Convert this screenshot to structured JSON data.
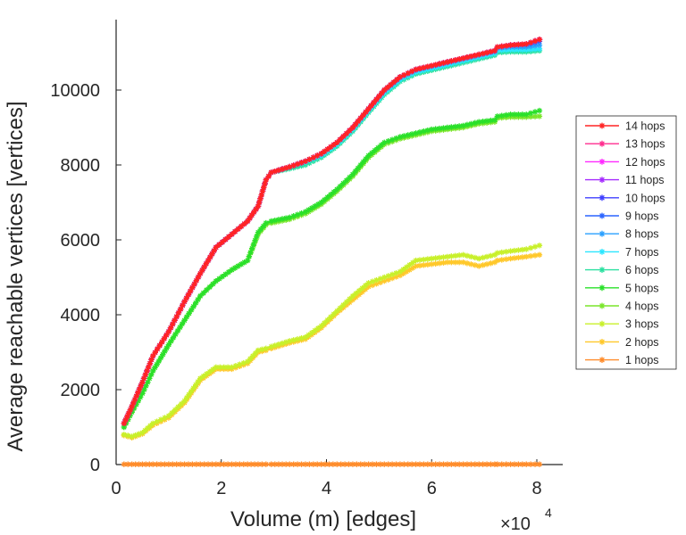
{
  "chart_data": {
    "type": "line",
    "title": "",
    "xlabel": "Volume (m) [edges]",
    "ylabel": "Average reachable vertices [vertices]",
    "xlim": [
      0,
      81000
    ],
    "ylim": [
      0,
      11800
    ],
    "x_ticks": [
      0,
      20000,
      40000,
      60000,
      80000
    ],
    "x_tick_labels": [
      "0",
      "2",
      "4",
      "6",
      "8"
    ],
    "x_exponent_base": "×10",
    "x_exponent_power": "4",
    "y_ticks": [
      0,
      2000,
      4000,
      6000,
      8000,
      10000
    ],
    "y_tick_labels": [
      "0",
      "2000",
      "4000",
      "6000",
      "8000",
      "10000"
    ],
    "grid": false,
    "legend_position": "right",
    "marker": "asterisk",
    "x": [
      1500,
      3000,
      5000,
      7000,
      10000,
      13000,
      16000,
      19000,
      22000,
      25000,
      27000,
      28500,
      29500,
      33000,
      36000,
      39000,
      42000,
      45000,
      48000,
      51000,
      54000,
      57000,
      60000,
      63000,
      66000,
      69000,
      72000,
      72500,
      75000,
      78000,
      80500
    ],
    "series": [
      {
        "name": "14 hops",
        "color": "#ff2424",
        "values": [
          1100,
          1550,
          2200,
          2900,
          3550,
          4350,
          5100,
          5800,
          6150,
          6500,
          6900,
          7600,
          7800,
          7950,
          8100,
          8300,
          8600,
          9000,
          9500,
          10000,
          10350,
          10550,
          10650,
          10750,
          10850,
          10950,
          11050,
          11150,
          11200,
          11230,
          11350
        ]
      },
      {
        "name": "13 hops",
        "color": "#ff2d8f",
        "values": [
          1100,
          1550,
          2200,
          2900,
          3550,
          4350,
          5100,
          5800,
          6150,
          6500,
          6900,
          7600,
          7800,
          7950,
          8100,
          8300,
          8600,
          9000,
          9500,
          10000,
          10350,
          10550,
          10650,
          10750,
          10850,
          10950,
          11050,
          11150,
          11200,
          11230,
          11350
        ]
      },
      {
        "name": "12 hops",
        "color": "#ff29ff",
        "values": [
          1100,
          1550,
          2200,
          2900,
          3550,
          4350,
          5100,
          5800,
          6150,
          6500,
          6900,
          7600,
          7800,
          7950,
          8100,
          8300,
          8600,
          9000,
          9500,
          10000,
          10350,
          10550,
          10650,
          10750,
          10850,
          10950,
          11050,
          11150,
          11200,
          11230,
          11350
        ]
      },
      {
        "name": "11 hops",
        "color": "#a52aff",
        "values": [
          1100,
          1550,
          2200,
          2900,
          3550,
          4350,
          5100,
          5800,
          6150,
          6500,
          6900,
          7600,
          7800,
          7950,
          8100,
          8300,
          8600,
          9000,
          9500,
          10000,
          10350,
          10550,
          10650,
          10750,
          10850,
          10950,
          11050,
          11150,
          11200,
          11230,
          11350
        ]
      },
      {
        "name": "10 hops",
        "color": "#3f3fff",
        "values": [
          1100,
          1550,
          2200,
          2900,
          3550,
          4350,
          5100,
          5800,
          6150,
          6500,
          6900,
          7600,
          7800,
          7950,
          8100,
          8300,
          8600,
          9000,
          9500,
          10000,
          10350,
          10550,
          10650,
          10750,
          10850,
          10950,
          11050,
          11150,
          11200,
          11230,
          11350
        ]
      },
      {
        "name": "9 hops",
        "color": "#2a64ff",
        "values": [
          1100,
          1550,
          2200,
          2900,
          3550,
          4350,
          5100,
          5800,
          6150,
          6500,
          6900,
          7600,
          7800,
          7950,
          8100,
          8300,
          8600,
          9000,
          9500,
          10000,
          10350,
          10550,
          10650,
          10750,
          10850,
          10950,
          11050,
          11150,
          11200,
          11220,
          11300
        ]
      },
      {
        "name": "8 hops",
        "color": "#2aa0ff",
        "values": [
          1100,
          1550,
          2200,
          2900,
          3550,
          4350,
          5100,
          5800,
          6150,
          6500,
          6900,
          7600,
          7800,
          7950,
          8100,
          8300,
          8600,
          9000,
          9500,
          9980,
          10330,
          10530,
          10630,
          10730,
          10830,
          10930,
          11030,
          11120,
          11150,
          11150,
          11200
        ]
      },
      {
        "name": "7 hops",
        "color": "#2ae6ff",
        "values": [
          1100,
          1550,
          2200,
          2900,
          3550,
          4350,
          5100,
          5800,
          6150,
          6500,
          6900,
          7600,
          7800,
          7950,
          8080,
          8250,
          8550,
          8950,
          9450,
          9930,
          10280,
          10480,
          10580,
          10680,
          10780,
          10880,
          10980,
          11060,
          11080,
          11080,
          11100
        ]
      },
      {
        "name": "6 hops",
        "color": "#2ae0a0",
        "values": [
          1100,
          1550,
          2200,
          2900,
          3550,
          4350,
          5100,
          5800,
          6150,
          6500,
          6900,
          7600,
          7800,
          7900,
          8000,
          8200,
          8500,
          8900,
          9400,
          9880,
          10230,
          10430,
          10530,
          10630,
          10730,
          10830,
          10930,
          11000,
          11020,
          11020,
          11050
        ]
      },
      {
        "name": "5 hops",
        "color": "#2ae02a",
        "values": [
          1000,
          1400,
          1900,
          2500,
          3200,
          3850,
          4500,
          4900,
          5200,
          5450,
          6200,
          6450,
          6500,
          6600,
          6750,
          7000,
          7350,
          7750,
          8250,
          8600,
          8750,
          8850,
          8950,
          9000,
          9050,
          9150,
          9200,
          9300,
          9350,
          9350,
          9450
        ]
      },
      {
        "name": "4 hops",
        "color": "#7ae62a",
        "values": [
          1000,
          1400,
          1900,
          2500,
          3200,
          3850,
          4500,
          4900,
          5200,
          5450,
          6150,
          6400,
          6450,
          6550,
          6700,
          6950,
          7300,
          7700,
          8200,
          8550,
          8700,
          8800,
          8900,
          8950,
          9000,
          9100,
          9150,
          9250,
          9280,
          9280,
          9300
        ]
      },
      {
        "name": "3 hops",
        "color": "#c8f02a",
        "values": [
          800,
          750,
          850,
          1100,
          1300,
          1700,
          2300,
          2600,
          2600,
          2750,
          3050,
          3100,
          3150,
          3300,
          3400,
          3700,
          4100,
          4500,
          4850,
          5000,
          5150,
          5450,
          5500,
          5550,
          5600,
          5500,
          5600,
          5650,
          5700,
          5750,
          5850
        ]
      },
      {
        "name": "2 hops",
        "color": "#ffc82a",
        "values": [
          780,
          720,
          820,
          1050,
          1250,
          1650,
          2250,
          2550,
          2550,
          2700,
          3000,
          3050,
          3100,
          3250,
          3350,
          3650,
          4050,
          4400,
          4750,
          4900,
          5050,
          5300,
          5350,
          5400,
          5400,
          5300,
          5400,
          5450,
          5500,
          5550,
          5600
        ]
      },
      {
        "name": "1 hops",
        "color": "#ff8c2a",
        "values": [
          8,
          8,
          8,
          8,
          8,
          8,
          8,
          8,
          8,
          8,
          8,
          8,
          8,
          8,
          8,
          8,
          8,
          8,
          8,
          8,
          8,
          8,
          8,
          8,
          8,
          8,
          8,
          8,
          8,
          8,
          8
        ]
      }
    ]
  }
}
